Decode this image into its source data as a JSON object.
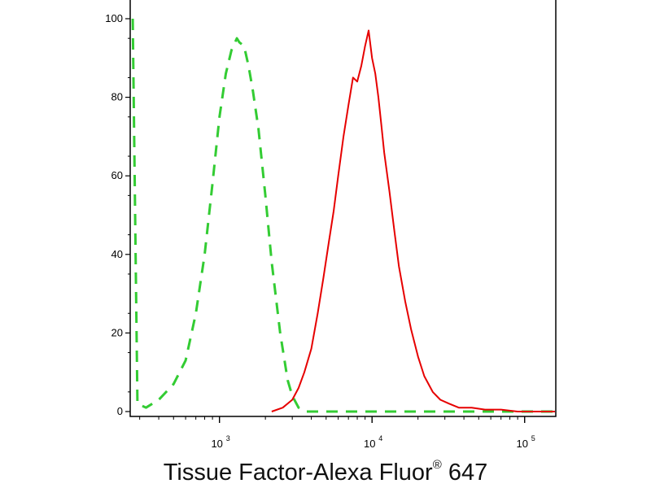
{
  "chart_data": {
    "type": "line",
    "title": "",
    "xlabel": "Tissue Factor-Alexa Fluor",
    "xlabel_superscript": "®",
    "xlabel_suffix": " 647",
    "ylabel": "",
    "xscale": "log",
    "xlim": [
      260,
      160000
    ],
    "ylim": [
      0,
      105
    ],
    "yticks": [
      0,
      20,
      40,
      60,
      80,
      100
    ],
    "xticks": [
      {
        "value": 1000,
        "base": "10",
        "exp": "3"
      },
      {
        "value": 10000,
        "base": "10",
        "exp": "4"
      },
      {
        "value": 100000,
        "base": "10",
        "exp": "5"
      }
    ],
    "grid": false,
    "legend": "none",
    "series": [
      {
        "color": "#33cc33",
        "style": "dashed",
        "x": [
          270,
          290,
          330,
          400,
          500,
          600,
          700,
          800,
          900,
          1000,
          1100,
          1200,
          1300,
          1350,
          1450,
          1550,
          1650,
          1800,
          2000,
          2200,
          2500,
          2800,
          3000,
          3300,
          3700,
          4500,
          6000,
          10000,
          30000,
          100000,
          160000
        ],
        "y": [
          100,
          2,
          1,
          3,
          7,
          13,
          25,
          40,
          58,
          75,
          86,
          92,
          95,
          94,
          93,
          88,
          82,
          72,
          55,
          38,
          20,
          8,
          4,
          1,
          0,
          0,
          0,
          0,
          0,
          0,
          0
        ]
      },
      {
        "color": "#e60000",
        "style": "solid",
        "x": [
          2200,
          2600,
          3000,
          3300,
          3600,
          4000,
          4400,
          4800,
          5200,
          5600,
          6000,
          6500,
          7000,
          7500,
          8000,
          8500,
          9000,
          9500,
          10000,
          10500,
          11000,
          11500,
          12000,
          13000,
          14000,
          15000,
          16500,
          18000,
          20000,
          22000,
          25000,
          28000,
          32000,
          37000,
          45000,
          55000,
          70000,
          90000,
          120000,
          160000
        ],
        "y": [
          0,
          1,
          3,
          6,
          10,
          16,
          25,
          34,
          43,
          51,
          60,
          70,
          78,
          85,
          84,
          88,
          93,
          97,
          90,
          86,
          80,
          73,
          66,
          56,
          46,
          37,
          28,
          21,
          14,
          9,
          5,
          3,
          2,
          1,
          1,
          0.5,
          0.5,
          0,
          0,
          0
        ]
      }
    ]
  }
}
